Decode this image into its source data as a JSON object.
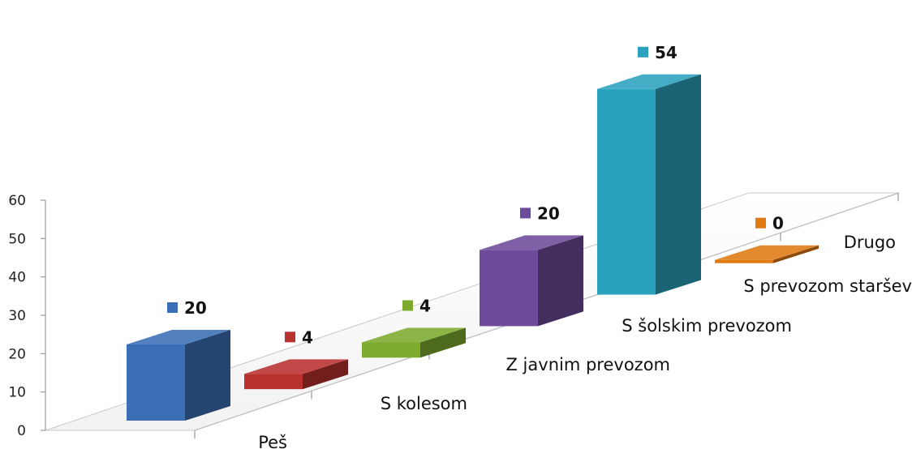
{
  "chart_data": {
    "type": "bar",
    "categories": [
      "Peš",
      "S kolesom",
      "Z javnim prevozom",
      "S šolskim prevozom",
      "S prevozom staršev",
      "Drugo"
    ],
    "values": [
      20,
      4,
      4,
      20,
      54,
      0
    ],
    "data_labels": [
      "20",
      "4",
      "4",
      "20",
      "54",
      "0"
    ],
    "colors": [
      "#3a6fb5",
      "#b8312f",
      "#7cab2e",
      "#6d4a9a",
      "#2aa2bd",
      "#e07a12"
    ],
    "ylim": [
      0,
      60
    ],
    "yticks": [
      "0",
      "10",
      "20",
      "30",
      "40",
      "50",
      "60"
    ],
    "title": "",
    "xlabel": "",
    "ylabel": "",
    "legend": "none",
    "grid": false
  }
}
